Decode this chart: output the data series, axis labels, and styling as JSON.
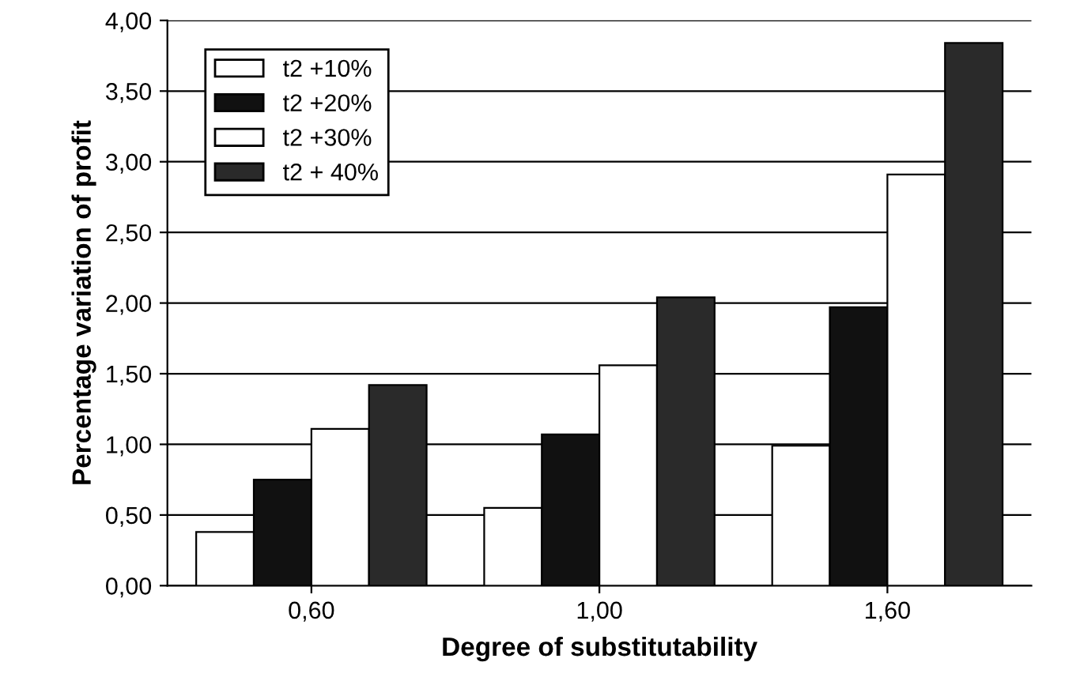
{
  "chart_data": {
    "type": "bar",
    "xlabel": "Degree of substitutability",
    "ylabel": "Percentage variation of profit",
    "categories": [
      "0,60",
      "1,00",
      "1,60"
    ],
    "series": [
      {
        "name": "t2 +10%",
        "color": "#ffffff",
        "values": [
          0.38,
          0.55,
          0.99
        ]
      },
      {
        "name": "t2 +20%",
        "color": "#111111",
        "values": [
          0.75,
          1.07,
          1.97
        ]
      },
      {
        "name": "t2 +30%",
        "color": "#ffffff",
        "values": [
          1.11,
          1.56,
          2.91
        ]
      },
      {
        "name": "t2 + 40%",
        "color": "#2a2a2a",
        "values": [
          1.42,
          2.04,
          3.84
        ]
      }
    ],
    "ylim": [
      0,
      4
    ],
    "yticks": [
      {
        "value": 0,
        "label": "0,00"
      },
      {
        "value": 0.5,
        "label": "0,50"
      },
      {
        "value": 1,
        "label": "1,00"
      },
      {
        "value": 1.5,
        "label": "1,50"
      },
      {
        "value": 2,
        "label": "2,00"
      },
      {
        "value": 2.5,
        "label": "2,50"
      },
      {
        "value": 3,
        "label": "3,00"
      },
      {
        "value": 3.5,
        "label": "3,50"
      },
      {
        "value": 4,
        "label": "4,00"
      }
    ],
    "grid": "y",
    "legend": "top left"
  }
}
